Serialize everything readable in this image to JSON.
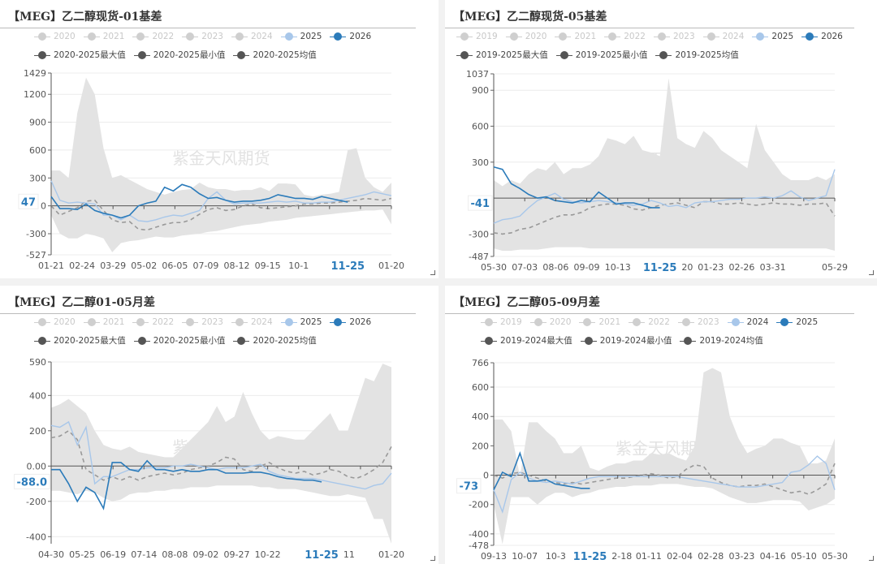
{
  "watermark": "紫金天风期货",
  "colors": {
    "faded": "#cfcfcf",
    "prev": "#a8c7ea",
    "current": "#2b7bba",
    "stat": "#555555",
    "band": "#e3e3e3",
    "avg": "#999999",
    "highlight": "#2b7bba"
  },
  "chart_data": [
    {
      "type": "line",
      "title": "【MEG】乙二醇现货-01基差",
      "legend": [
        "2020",
        "2021",
        "2022",
        "2023",
        "2024",
        "2025",
        "2026"
      ],
      "legend_stats": [
        "2020-2025最大值",
        "2020-2025最小值",
        "2020-2025均值"
      ],
      "ylim": [
        -527,
        1429
      ],
      "yticks": [
        1429,
        1200,
        900,
        600,
        300,
        0,
        -300,
        -527
      ],
      "ytick_labels": [
        "1429",
        "1200",
        "900",
        "600",
        "300",
        "0",
        "-300",
        "-527"
      ],
      "xticks": [
        "01-21",
        "02-24",
        "03-29",
        "05-02",
        "06-05",
        "07-09",
        "08-12",
        "09-15",
        "10-1",
        "",
        "",
        "01-20"
      ],
      "highlight_x": "11-25",
      "current_label": "47",
      "max": [
        380,
        380,
        300,
        1000,
        1380,
        1200,
        620,
        300,
        330,
        280,
        230,
        180,
        150,
        120,
        150,
        170,
        180,
        250,
        200,
        180,
        180,
        160,
        170,
        170,
        200,
        160,
        240,
        240,
        230,
        120,
        100,
        120,
        130,
        150,
        600,
        620,
        300,
        200,
        150,
        250
      ],
      "min": [
        -100,
        -300,
        -350,
        -350,
        -300,
        -320,
        -350,
        -500,
        -400,
        -380,
        -370,
        -350,
        -330,
        -340,
        -340,
        -320,
        -310,
        -300,
        -280,
        -270,
        -250,
        -230,
        -210,
        -200,
        -190,
        -170,
        -160,
        -150,
        -130,
        -120,
        -110,
        -100,
        -90,
        -80,
        -70,
        -60,
        -50,
        -50,
        -40,
        -200
      ],
      "avg": [
        0,
        -100,
        -60,
        -20,
        50,
        60,
        -50,
        -150,
        -180,
        -170,
        -250,
        -260,
        -230,
        -200,
        -180,
        -180,
        -150,
        -90,
        -40,
        -20,
        -50,
        -40,
        0,
        20,
        -20,
        -30,
        -20,
        -10,
        0,
        20,
        20,
        30,
        30,
        40,
        50,
        60,
        80,
        70,
        60,
        80
      ],
      "prev": [
        270,
        60,
        30,
        40,
        30,
        20,
        -100,
        -100,
        -150,
        -100,
        -160,
        -170,
        -150,
        -120,
        -100,
        -110,
        -80,
        -50,
        80,
        150,
        60,
        20,
        30,
        30,
        30,
        40,
        50,
        40,
        50,
        30,
        30,
        40,
        40,
        60,
        80,
        100,
        120,
        150,
        130,
        110
      ],
      "current": [
        100,
        -30,
        -30,
        -40,
        20,
        -50,
        -80,
        -100,
        -130,
        -100,
        0,
        30,
        50,
        200,
        160,
        230,
        200,
        130,
        80,
        90,
        60,
        40,
        50,
        50,
        60,
        80,
        120,
        100,
        80,
        80,
        70,
        100,
        80,
        60,
        40
      ]
    },
    {
      "type": "line",
      "title": "【MEG】乙二醇现货-05基差",
      "legend": [
        "2019",
        "2020",
        "2021",
        "2022",
        "2023",
        "2024",
        "2025",
        "2026"
      ],
      "legend_stats": [
        "2019-2025最大值",
        "2019-2025最小值",
        "2019-2025均值"
      ],
      "ylim": [
        -487,
        1037
      ],
      "yticks": [
        1037,
        900,
        600,
        300,
        -300,
        -487
      ],
      "ytick_labels": [
        "1037",
        "900",
        "600",
        "300",
        "-300",
        "-487"
      ],
      "xticks": [
        "05-30",
        "07-03",
        "08-06",
        "09-09",
        "10-13",
        "",
        "20",
        "01-23",
        "02-26",
        "03-31",
        "",
        "05-29"
      ],
      "highlight_x": "11-25",
      "current_label": "-41",
      "max": [
        150,
        100,
        150,
        120,
        200,
        250,
        230,
        300,
        200,
        250,
        250,
        280,
        350,
        500,
        480,
        450,
        520,
        400,
        380,
        350,
        1000,
        500,
        450,
        420,
        560,
        500,
        400,
        350,
        300,
        250,
        620,
        400,
        300,
        200,
        150,
        150,
        150,
        180,
        150,
        200
      ],
      "min": [
        -420,
        -440,
        -440,
        -430,
        -430,
        -430,
        -420,
        -410,
        -410,
        -410,
        -410,
        -420,
        -420,
        -420,
        -420,
        -420,
        -420,
        -420,
        -420,
        -420,
        -420,
        -420,
        -420,
        -420,
        -420,
        -420,
        -420,
        -420,
        -420,
        -420,
        -420,
        -420,
        -420,
        -420,
        -420,
        -420,
        -420,
        -420,
        -420,
        -440
      ],
      "avg": [
        -290,
        -300,
        -290,
        -260,
        -250,
        -220,
        -190,
        -160,
        -140,
        -140,
        -120,
        -80,
        -60,
        -50,
        -50,
        -60,
        -90,
        -100,
        -80,
        -60,
        -50,
        -40,
        -60,
        -80,
        -30,
        -30,
        -50,
        -50,
        -40,
        -50,
        -60,
        -50,
        -40,
        -50,
        -50,
        -60,
        -50,
        -50,
        -40,
        -150
      ],
      "prev": [
        -210,
        -180,
        -170,
        -150,
        -80,
        -20,
        10,
        40,
        -10,
        -30,
        -40,
        -30,
        -20,
        -30,
        -40,
        -50,
        -60,
        -50,
        -20,
        -40,
        -70,
        -60,
        -80,
        -40,
        -30,
        -30,
        -20,
        -10,
        -10,
        0,
        0,
        10,
        0,
        20,
        60,
        10,
        -20,
        0,
        20,
        240
      ],
      "current": [
        260,
        240,
        120,
        80,
        30,
        0,
        10,
        -20,
        -30,
        -40,
        -20,
        -30,
        50,
        0,
        -50,
        -40,
        -40,
        -60,
        -80,
        -80
      ]
    },
    {
      "type": "line",
      "title": "【MEG】乙二醇01-05月差",
      "legend": [
        "2020",
        "2021",
        "2022",
        "2023",
        "2024",
        "2025",
        "2026"
      ],
      "legend_stats": [
        "2020-2025最大值",
        "2020-2025最小值",
        "2020-2025均值"
      ],
      "ylim": [
        -440,
        590
      ],
      "yticks": [
        590,
        400,
        200,
        0,
        -200,
        -400
      ],
      "ytick_labels": [
        "590",
        "400",
        "200",
        "0.00",
        "-200",
        "-400"
      ],
      "xticks": [
        "04-30",
        "05-25",
        "06-19",
        "07-14",
        "08-08",
        "09-02",
        "09-27",
        "10-22",
        "",
        "11",
        "",
        "01-20"
      ],
      "highlight_x": "11-25",
      "current_label": "-88.0",
      "max": [
        330,
        350,
        380,
        340,
        300,
        200,
        120,
        100,
        90,
        110,
        80,
        70,
        60,
        50,
        50,
        100,
        150,
        200,
        250,
        340,
        250,
        280,
        420,
        300,
        200,
        150,
        170,
        160,
        150,
        150,
        200,
        250,
        300,
        200,
        200,
        350,
        500,
        480,
        580,
        560
      ],
      "min": [
        -140,
        -140,
        -150,
        -160,
        -140,
        -150,
        -180,
        -200,
        -190,
        -160,
        -150,
        -150,
        -140,
        -140,
        -130,
        -130,
        -120,
        -120,
        -120,
        -110,
        -110,
        -110,
        -110,
        -110,
        -120,
        -120,
        -130,
        -130,
        -130,
        -140,
        -150,
        -160,
        -170,
        -170,
        -160,
        -170,
        -180,
        -300,
        -300,
        -440
      ],
      "avg": [
        160,
        170,
        200,
        150,
        -20,
        -50,
        -80,
        -60,
        -80,
        -60,
        -80,
        -60,
        -50,
        -40,
        -50,
        -40,
        -20,
        -10,
        0,
        20,
        50,
        40,
        -20,
        -30,
        0,
        20,
        -10,
        -30,
        -40,
        -30,
        -50,
        -40,
        -20,
        -30,
        -60,
        -70,
        -50,
        -20,
        20,
        110
      ],
      "prev": [
        230,
        220,
        250,
        120,
        220,
        -100,
        -60,
        -60,
        -40,
        -20,
        -20,
        -10,
        -10,
        -10,
        0,
        0,
        10,
        0,
        -10,
        -20,
        -10,
        -10,
        -10,
        0,
        10,
        -30,
        -50,
        -60,
        -70,
        -70,
        -70,
        -80,
        -90,
        -100,
        -110,
        -120,
        -130,
        -110,
        -100,
        -40
      ],
      "current": [
        -20,
        -20,
        -100,
        -200,
        -120,
        -150,
        -240,
        20,
        20,
        -20,
        -30,
        30,
        -20,
        -20,
        -30,
        -20,
        -30,
        -30,
        -20,
        -20,
        -40,
        -40,
        -40,
        -35,
        -35,
        -45,
        -60,
        -70,
        -75,
        -80,
        -80,
        -90
      ]
    },
    {
      "type": "line",
      "title": "【MEG】乙二醇05-09月差",
      "legend": [
        "2019",
        "2020",
        "2021",
        "2022",
        "2023",
        "2024",
        "2025"
      ],
      "legend_stats": [
        "2019-2024最大值",
        "2019-2024最小值",
        "2019-2024均值"
      ],
      "ylim": [
        -478,
        766
      ],
      "yticks": [
        766,
        600,
        400,
        200,
        0,
        -200,
        -400,
        -478
      ],
      "ytick_labels": [
        "766",
        "600",
        "400",
        "200",
        "0",
        "-200",
        "-400",
        "-478"
      ],
      "xticks": [
        "09-13",
        "10-07",
        "10-3",
        "",
        "2-18",
        "01-11",
        "02-04",
        "02-28",
        "03-23",
        "04-16",
        "05-10",
        "05-30"
      ],
      "highlight_x": "11-25",
      "current_label": "-73",
      "max": [
        380,
        380,
        300,
        -10,
        360,
        360,
        300,
        250,
        150,
        150,
        200,
        50,
        30,
        60,
        80,
        80,
        100,
        100,
        150,
        140,
        150,
        120,
        100,
        200,
        700,
        730,
        700,
        400,
        250,
        150,
        180,
        200,
        250,
        250,
        220,
        200,
        80,
        80,
        100,
        250
      ],
      "min": [
        -200,
        -470,
        -150,
        -150,
        -150,
        -200,
        -150,
        -120,
        -120,
        -150,
        -130,
        -120,
        -100,
        -90,
        -80,
        -80,
        -70,
        -70,
        -70,
        -60,
        -60,
        -60,
        -70,
        -80,
        -80,
        -90,
        -120,
        -150,
        -170,
        -190,
        -190,
        -180,
        -170,
        -170,
        -170,
        -180,
        -240,
        -220,
        -200,
        -160
      ],
      "avg": [
        0,
        -20,
        10,
        20,
        0,
        -20,
        -40,
        -50,
        -60,
        -50,
        -60,
        -50,
        -40,
        -30,
        -20,
        -20,
        -10,
        0,
        10,
        0,
        -20,
        -10,
        40,
        70,
        60,
        -20,
        -50,
        -70,
        -80,
        -70,
        -70,
        -60,
        -80,
        -100,
        -120,
        -110,
        -130,
        -100,
        -60,
        80
      ],
      "prev": [
        -100,
        -250,
        -30,
        20,
        -20,
        -40,
        -50,
        -40,
        -50,
        -60,
        -40,
        -20,
        -10,
        -10,
        -10,
        -10,
        -10,
        -10,
        -10,
        -10,
        -10,
        -10,
        -20,
        -30,
        -40,
        -50,
        -60,
        -70,
        -80,
        -80,
        -80,
        -70,
        -60,
        -50,
        20,
        30,
        70,
        130,
        80,
        -100
      ],
      "current": [
        -100,
        20,
        -10,
        150,
        -40,
        -40,
        -30,
        -60,
        -70,
        -80,
        -90,
        -90
      ]
    }
  ]
}
